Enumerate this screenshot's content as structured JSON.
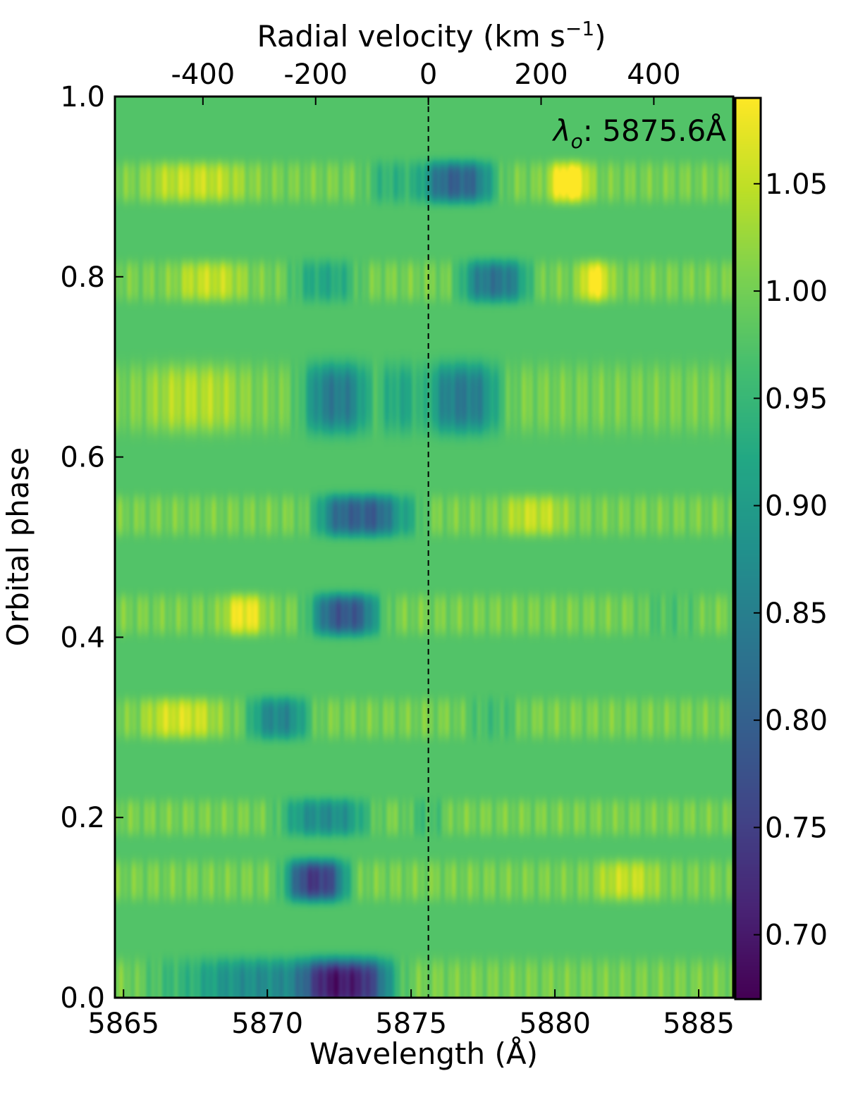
{
  "chart_data": {
    "type": "heatmap",
    "xlabel": "Wavelength (Å)",
    "ylabel": "Orbital phase",
    "top_xlabel_main": "Radial velocity (km s",
    "top_xlabel_sup": "−1",
    "top_xlabel_close": ")",
    "annotation_symbol": "λ",
    "annotation_sub": "o",
    "annotation_value": ": 5875.6Å",
    "rest_wavelength": 5875.6,
    "xlim": [
      5864.7,
      5886.2
    ],
    "ylim": [
      0.0,
      1.0
    ],
    "x_ticks": [
      5865,
      5870,
      5875,
      5880,
      5885
    ],
    "x_tick_labels": [
      "5865",
      "5870",
      "5875",
      "5880",
      "5885"
    ],
    "y_ticks": [
      0.0,
      0.2,
      0.4,
      0.6,
      0.8,
      1.0
    ],
    "y_tick_labels": [
      "0.0",
      "0.2",
      "0.4",
      "0.6",
      "0.8",
      "1.0"
    ],
    "velocity_ticks": [
      -400,
      -200,
      0,
      200,
      400
    ],
    "velocity_tick_labels": [
      "-400",
      "-200",
      "0",
      "200",
      "400"
    ],
    "colorbar": {
      "colormap": "viridis",
      "range": [
        0.67,
        1.09
      ],
      "ticks": [
        0.7,
        0.75,
        0.8,
        0.85,
        0.9,
        0.95,
        1.0,
        1.05
      ],
      "tick_labels": [
        "0.70",
        "0.75",
        "0.80",
        "0.85",
        "0.90",
        "0.95",
        "1.00",
        "1.05"
      ]
    },
    "background_value": 0.975,
    "rows": [
      {
        "phase": 0.015,
        "height": 0.055,
        "features": [
          {
            "w": 5872.8,
            "sigma": 1.3,
            "depth": 0.29
          },
          {
            "w": 5870.0,
            "sigma": 1.8,
            "depth": 0.13
          },
          {
            "w": 5867.2,
            "sigma": 1.3,
            "depth": 0.05
          }
        ]
      },
      {
        "phase": 0.13,
        "height": 0.045,
        "features": [
          {
            "w": 5871.7,
            "sigma": 0.9,
            "depth": 0.26
          },
          {
            "w": 5882.5,
            "sigma": 0.9,
            "depth": -0.05
          }
        ]
      },
      {
        "phase": 0.2,
        "height": 0.04,
        "features": [
          {
            "w": 5872.0,
            "sigma": 1.3,
            "depth": 0.13
          },
          {
            "w": 5875.5,
            "sigma": 0.6,
            "depth": 0.04
          }
        ]
      },
      {
        "phase": 0.31,
        "height": 0.045,
        "features": [
          {
            "w": 5870.4,
            "sigma": 0.9,
            "depth": 0.14
          },
          {
            "w": 5867.0,
            "sigma": 1.1,
            "depth": -0.06
          },
          {
            "w": 5877.8,
            "sigma": 0.8,
            "depth": 0.04
          }
        ]
      },
      {
        "phase": 0.425,
        "height": 0.045,
        "features": [
          {
            "w": 5872.7,
            "sigma": 1.0,
            "depth": 0.22
          },
          {
            "w": 5869.2,
            "sigma": 0.6,
            "depth": -0.08
          },
          {
            "w": 5884.0,
            "sigma": 0.9,
            "depth": 0.03
          }
        ]
      },
      {
        "phase": 0.535,
        "height": 0.045,
        "features": [
          {
            "w": 5873.0,
            "sigma": 1.1,
            "depth": 0.2
          },
          {
            "w": 5874.5,
            "sigma": 0.8,
            "depth": 0.08
          },
          {
            "w": 5879.3,
            "sigma": 0.9,
            "depth": -0.05
          }
        ]
      },
      {
        "phase": 0.665,
        "height": 0.075,
        "features": [
          {
            "w": 5872.4,
            "sigma": 1.0,
            "depth": 0.16
          },
          {
            "w": 5876.8,
            "sigma": 1.1,
            "depth": 0.16
          },
          {
            "w": 5874.6,
            "sigma": 0.6,
            "depth": 0.08
          },
          {
            "w": 5867.5,
            "sigma": 1.4,
            "depth": -0.04
          }
        ]
      },
      {
        "phase": 0.795,
        "height": 0.045,
        "features": [
          {
            "w": 5872.0,
            "sigma": 1.0,
            "depth": 0.08
          },
          {
            "w": 5877.9,
            "sigma": 1.0,
            "depth": 0.17
          },
          {
            "w": 5881.4,
            "sigma": 0.45,
            "depth": -0.09
          },
          {
            "w": 5868.0,
            "sigma": 1.0,
            "depth": -0.05
          }
        ]
      },
      {
        "phase": 0.905,
        "height": 0.045,
        "features": [
          {
            "w": 5876.6,
            "sigma": 1.1,
            "depth": 0.2
          },
          {
            "w": 5874.3,
            "sigma": 0.8,
            "depth": 0.06
          },
          {
            "w": 5880.5,
            "sigma": 0.6,
            "depth": -0.11
          },
          {
            "w": 5867.5,
            "sigma": 1.5,
            "depth": -0.05
          }
        ]
      }
    ]
  }
}
